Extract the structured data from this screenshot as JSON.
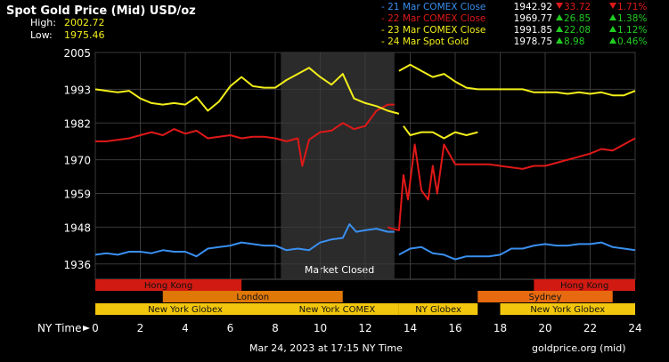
{
  "header": {
    "title": "Spot Gold Price (Mid) USD/oz",
    "high_label": "High:",
    "high_value": "2002.72",
    "low_label": "Low:",
    "low_value": "1975.46"
  },
  "legend": [
    {
      "label": "- 21 Mar COMEX Close",
      "price": "1942.92",
      "change": "33.72",
      "pct": "1.71%",
      "dir": "down",
      "color": "#3a8ff0"
    },
    {
      "label": "- 22 Mar COMEX Close",
      "price": "1969.77",
      "change": "26.85",
      "pct": "1.38%",
      "dir": "up",
      "color": "#e01818"
    },
    {
      "label": "- 23 Mar COMEX Close",
      "price": "1991.85",
      "change": "22.08",
      "pct": "1.12%",
      "dir": "up",
      "color": "#f2ee1a"
    },
    {
      "label": "- 24 Mar Spot Gold",
      "price": "1978.75",
      "change": "8.98",
      "pct": "0.46%",
      "dir": "up",
      "color": "#f2ee1a"
    }
  ],
  "x_axis_title": "NY Time",
  "market_closed_label": "Market Closed",
  "footer": {
    "timestamp": "Mar 24, 2023 at 17:15 NY Time",
    "source": "goldprice.org (mid)"
  },
  "colors": {
    "background": "#000000",
    "grid": "#3a3a3a",
    "closed_shade": "#2b2b2b",
    "down": "#e01818",
    "up": "#22cc22",
    "hong_kong": "#d11a12",
    "london": "#e07808",
    "ny": "#f2c60c",
    "sydney": "#e86a10"
  },
  "sessions": [
    {
      "row": 0,
      "label": "Hong Kong",
      "start": 0,
      "end": 6.5,
      "color": "#d11a12"
    },
    {
      "row": 0,
      "label": "Hong Kong",
      "start": 19.5,
      "end": 24,
      "color": "#d11a12"
    },
    {
      "row": 1,
      "label": "London",
      "start": 3,
      "end": 11,
      "color": "#e07808"
    },
    {
      "row": 1,
      "label": "Sydney",
      "start": 17,
      "end": 23,
      "color": "#e86a10"
    },
    {
      "row": 2,
      "label": "New York Globex",
      "start": 0,
      "end": 8,
      "color": "#f2c60c"
    },
    {
      "row": 2,
      "label": "New York COMEX",
      "start": 8,
      "end": 13.5,
      "color": "#f2c60c"
    },
    {
      "row": 2,
      "label": "NY Globex",
      "start": 13.5,
      "end": 17,
      "color": "#f2c60c"
    },
    {
      "row": 2,
      "label": "New York Globex",
      "start": 18,
      "end": 24,
      "color": "#f2c60c"
    }
  ],
  "chart_data": {
    "type": "line",
    "title": "Spot Gold Price (Mid) USD/oz",
    "xlabel": "NY Time",
    "ylabel": "",
    "xlim": [
      0,
      24
    ],
    "ylim": [
      1931,
      2005
    ],
    "x_ticks": [
      0,
      2,
      4,
      6,
      8,
      10,
      12,
      14,
      16,
      18,
      20,
      22,
      24
    ],
    "y_ticks": [
      1936,
      1948,
      1959,
      1970,
      1982,
      1993,
      2005
    ],
    "grid": true,
    "legend_position": "top-right",
    "shaded_region": {
      "start": 8.25,
      "end": 13.3,
      "label": "Market Closed"
    },
    "series": [
      {
        "name": "21 Mar COMEX Close",
        "color": "#3a8ff0",
        "points": [
          [
            0,
            1939
          ],
          [
            0.5,
            1939.5
          ],
          [
            1,
            1939
          ],
          [
            1.5,
            1940
          ],
          [
            2,
            1940
          ],
          [
            2.5,
            1939.5
          ],
          [
            3,
            1940.5
          ],
          [
            3.5,
            1940
          ],
          [
            4,
            1940
          ],
          [
            4.5,
            1938.5
          ],
          [
            5,
            1941
          ],
          [
            5.5,
            1941.5
          ],
          [
            6,
            1942
          ],
          [
            6.5,
            1943
          ],
          [
            7,
            1942.5
          ],
          [
            7.5,
            1942
          ],
          [
            8,
            1942
          ],
          [
            8.5,
            1940.5
          ],
          [
            9,
            1941
          ],
          [
            9.5,
            1940.5
          ],
          [
            10,
            1943
          ],
          [
            10.5,
            1944
          ],
          [
            11,
            1944.5
          ],
          [
            11.3,
            1949
          ],
          [
            11.6,
            1946.5
          ],
          [
            12,
            1947
          ],
          [
            12.5,
            1947.5
          ],
          [
            13,
            1946.5
          ],
          [
            13.3,
            1946.5
          ]
        ],
        "points_b": [
          [
            13.5,
            1939
          ],
          [
            14,
            1941
          ],
          [
            14.5,
            1941.5
          ],
          [
            15,
            1939.5
          ],
          [
            15.5,
            1939
          ],
          [
            16,
            1937.5
          ],
          [
            16.5,
            1938.5
          ],
          [
            17,
            1938.5
          ],
          [
            17.5,
            1938.5
          ],
          [
            18,
            1939
          ],
          [
            18.5,
            1941
          ],
          [
            19,
            1941
          ],
          [
            19.5,
            1942
          ],
          [
            20,
            1942.5
          ],
          [
            20.5,
            1942
          ],
          [
            21,
            1942
          ],
          [
            21.5,
            1942.5
          ],
          [
            22,
            1942.5
          ],
          [
            22.5,
            1943
          ],
          [
            23,
            1941.5
          ],
          [
            23.5,
            1941
          ],
          [
            24,
            1940.5
          ]
        ]
      },
      {
        "name": "22 Mar COMEX Close",
        "color": "#e01818",
        "points": [
          [
            0,
            1976
          ],
          [
            0.5,
            1976
          ],
          [
            1,
            1976.5
          ],
          [
            1.5,
            1977
          ],
          [
            2,
            1978
          ],
          [
            2.5,
            1979
          ],
          [
            3,
            1978
          ],
          [
            3.5,
            1980
          ],
          [
            4,
            1978.5
          ],
          [
            4.5,
            1979.5
          ],
          [
            5,
            1977
          ],
          [
            5.5,
            1977.5
          ],
          [
            6,
            1978
          ],
          [
            6.5,
            1977
          ],
          [
            7,
            1977.5
          ],
          [
            7.5,
            1977.5
          ],
          [
            8,
            1977
          ],
          [
            8.5,
            1976
          ],
          [
            9,
            1977
          ],
          [
            9.2,
            1968
          ],
          [
            9.5,
            1976.5
          ],
          [
            10,
            1979
          ],
          [
            10.5,
            1979.5
          ],
          [
            11,
            1982
          ],
          [
            11.5,
            1980
          ],
          [
            12,
            1981
          ],
          [
            12.5,
            1986
          ],
          [
            13,
            1988
          ],
          [
            13.3,
            1988
          ]
        ],
        "points_b": [
          [
            13,
            1948
          ],
          [
            13.2,
            1947.5
          ],
          [
            13.5,
            1947
          ],
          [
            13.7,
            1965
          ],
          [
            13.9,
            1957
          ],
          [
            14.2,
            1975
          ],
          [
            14.5,
            1960
          ],
          [
            14.8,
            1957
          ],
          [
            15,
            1968
          ],
          [
            15.2,
            1959
          ],
          [
            15.5,
            1975
          ],
          [
            16,
            1968.5
          ],
          [
            16.5,
            1968.5
          ],
          [
            17,
            1968.5
          ],
          [
            17.5,
            1968.5
          ],
          [
            18,
            1968
          ],
          [
            18.5,
            1967.5
          ],
          [
            19,
            1967
          ],
          [
            19.5,
            1968
          ],
          [
            20,
            1968
          ],
          [
            20.5,
            1969
          ],
          [
            21,
            1970
          ],
          [
            21.5,
            1971
          ],
          [
            22,
            1972
          ],
          [
            22.5,
            1973.5
          ],
          [
            23,
            1973
          ],
          [
            23.5,
            1975
          ],
          [
            24,
            1977
          ]
        ]
      },
      {
        "name": "23 Mar COMEX Close",
        "color": "#f2ee1a",
        "points": [
          [
            0,
            1993
          ],
          [
            0.5,
            1992.5
          ],
          [
            1,
            1992
          ],
          [
            1.5,
            1992.5
          ],
          [
            2,
            1990
          ],
          [
            2.5,
            1988.5
          ],
          [
            3,
            1988
          ],
          [
            3.5,
            1988.5
          ],
          [
            4,
            1988
          ],
          [
            4.5,
            1990.5
          ],
          [
            5,
            1986
          ],
          [
            5.5,
            1989
          ],
          [
            6,
            1994
          ],
          [
            6.5,
            1997
          ],
          [
            7,
            1994
          ],
          [
            7.5,
            1993.5
          ],
          [
            8,
            1993.5
          ],
          [
            8.5,
            1996
          ],
          [
            9,
            1998
          ],
          [
            9.5,
            2000
          ],
          [
            10,
            1997
          ],
          [
            10.5,
            1994.5
          ],
          [
            11,
            1998
          ],
          [
            11.5,
            1990
          ],
          [
            12,
            1988.5
          ],
          [
            12.5,
            1987.5
          ],
          [
            13,
            1986
          ],
          [
            13.5,
            1985
          ]
        ],
        "points_b": [
          [
            13.7,
            1981
          ],
          [
            14,
            1978
          ],
          [
            14.5,
            1979
          ],
          [
            15,
            1979
          ],
          [
            15.5,
            1977
          ],
          [
            16,
            1979
          ],
          [
            16.5,
            1978
          ],
          [
            17,
            1979
          ]
        ]
      },
      {
        "name": "24 Mar Spot Gold",
        "color": "#f2ee1a",
        "points": [
          [
            13.5,
            1999
          ],
          [
            14,
            2001
          ],
          [
            14.5,
            1999
          ],
          [
            15,
            1997
          ],
          [
            15.5,
            1998
          ],
          [
            16,
            1995.5
          ],
          [
            16.5,
            1993.5
          ],
          [
            17,
            1993
          ],
          [
            17.5,
            1993
          ],
          [
            18,
            1993
          ],
          [
            18.5,
            1993
          ],
          [
            19,
            1993
          ],
          [
            19.5,
            1992
          ],
          [
            20,
            1992
          ],
          [
            20.5,
            1992
          ],
          [
            21,
            1991.5
          ],
          [
            21.5,
            1992
          ],
          [
            22,
            1991.5
          ],
          [
            22.5,
            1992
          ],
          [
            23,
            1991
          ],
          [
            23.5,
            1991
          ],
          [
            24,
            1992.5
          ]
        ]
      }
    ]
  }
}
